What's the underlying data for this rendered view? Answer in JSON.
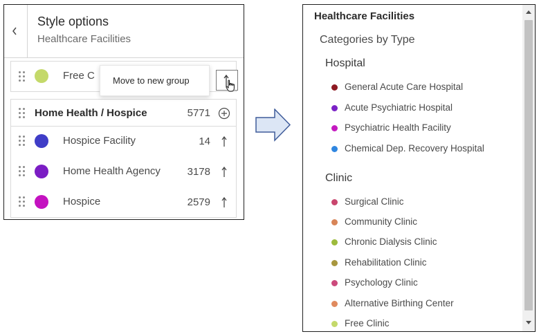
{
  "style_panel": {
    "title": "Style options",
    "subtitle": "Healthcare Facilities",
    "free_row": {
      "label": "Free C",
      "color": "#c4d96a"
    },
    "tooltip": "Move to new group",
    "group": {
      "label": "Home Health / Hospice",
      "count": "5771",
      "items": [
        {
          "label": "Hospice Facility",
          "count": "14",
          "color": "#3f3dc7"
        },
        {
          "label": "Home Health Agency",
          "count": "3178",
          "color": "#7b1dc4"
        },
        {
          "label": "Hospice",
          "count": "2579",
          "color": "#c412c0"
        }
      ]
    }
  },
  "legend": {
    "title": "Healthcare Facilities",
    "subtitle": "Categories by Type",
    "groups": [
      {
        "label": "Hospital",
        "items": [
          {
            "label": "General Acute Care Hospital",
            "color": "#8e1a22"
          },
          {
            "label": "Acute Psychiatric Hospital",
            "color": "#7b22c6"
          },
          {
            "label": "Psychiatric Health Facility",
            "color": "#c41ac0"
          },
          {
            "label": "Chemical Dep. Recovery Hospital",
            "color": "#2f86e0"
          }
        ]
      },
      {
        "label": "Clinic",
        "items": [
          {
            "label": "Surgical Clinic",
            "color": "#c9466e"
          },
          {
            "label": "Community Clinic",
            "color": "#d88558"
          },
          {
            "label": "Chronic Dialysis Clinic",
            "color": "#9dbb3c"
          },
          {
            "label": "Rehabilitation Clinic",
            "color": "#a8973e"
          },
          {
            "label": "Psychology Clinic",
            "color": "#cc4a7c"
          },
          {
            "label": "Alternative Birthing Center",
            "color": "#e08a5e"
          },
          {
            "label": "Free Clinic",
            "color": "#c4d96a"
          }
        ]
      }
    ]
  },
  "colors": {
    "arrow_fill": "#dce6f5",
    "arrow_stroke": "#3f5c9a"
  }
}
